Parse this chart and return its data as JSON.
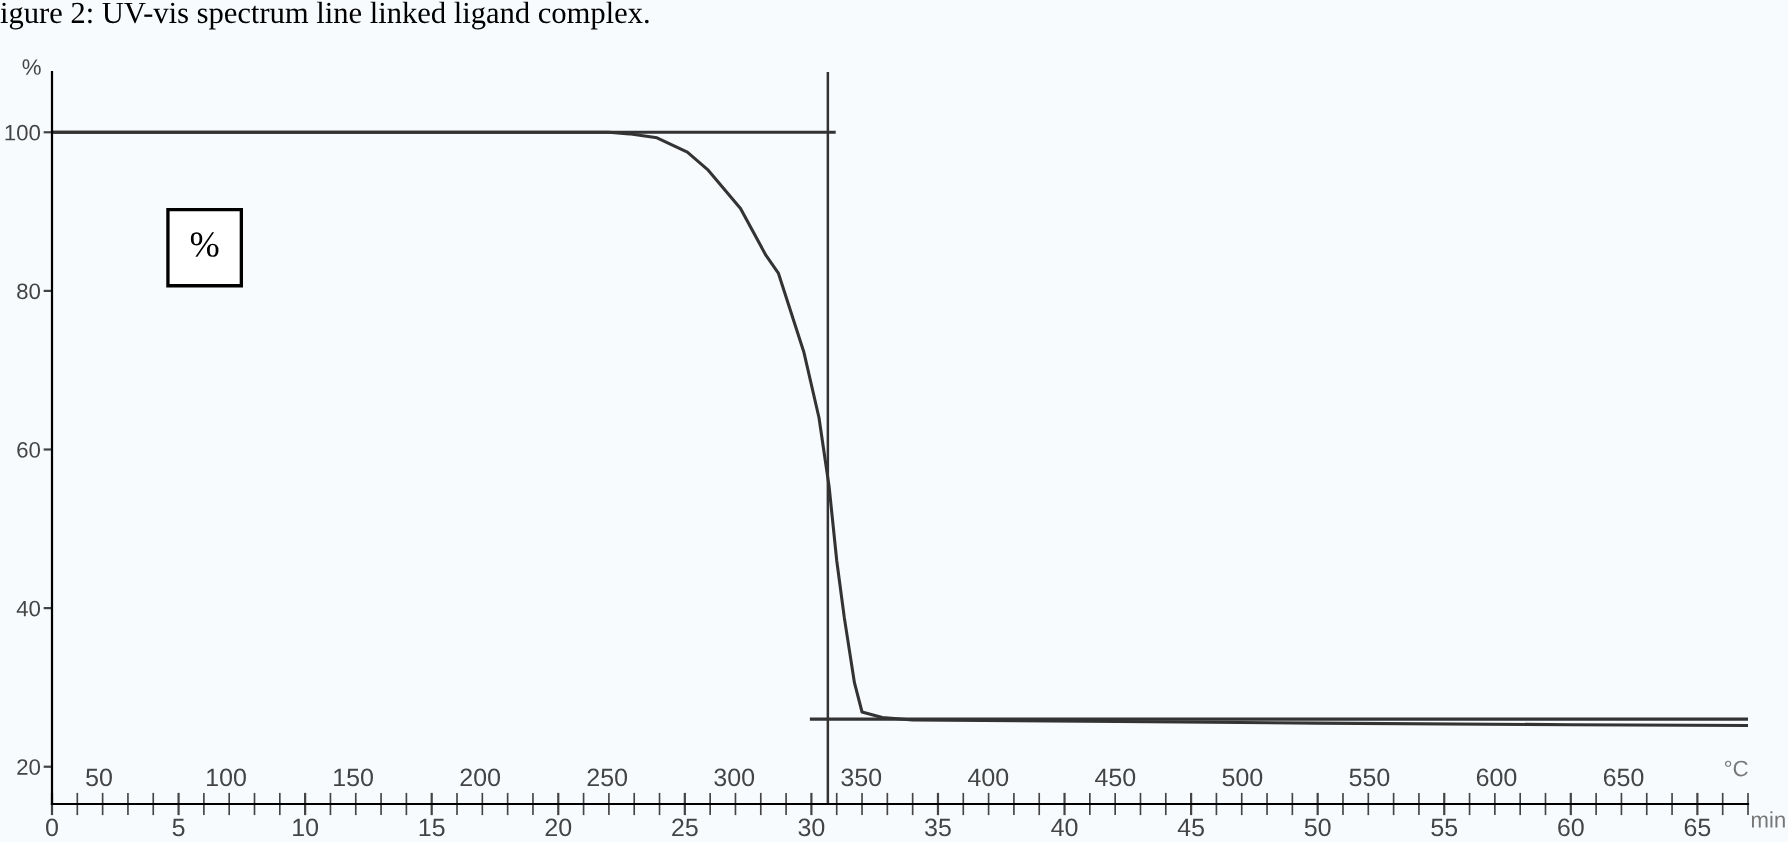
{
  "chart_data": {
    "type": "line",
    "title": "igure 2: UV-vis spectrum line linked ligand complex.",
    "ylabel": "%",
    "xlabel": "min",
    "x2label": "°C",
    "annotations": [
      "%"
    ],
    "xlim": [
      0,
      67
    ],
    "ylim": [
      15.3,
      107.6
    ],
    "xticks": [
      0,
      5,
      10,
      15,
      20,
      25,
      30,
      35,
      40,
      45,
      50,
      55,
      60,
      65
    ],
    "yticks": [
      20,
      40,
      60,
      80,
      100
    ],
    "x2lim": [
      31.5,
      699
    ],
    "x2ticks": [
      50,
      100,
      150,
      200,
      250,
      300,
      350,
      400,
      450,
      500,
      550,
      600,
      650
    ],
    "grid": false,
    "legend": false,
    "marker": "none",
    "line_style": "solid",
    "series": [
      {
        "color": "#333333",
        "x": [
          0,
          22.0,
          22.8,
          23.9,
          25.1,
          25.9,
          27.2,
          28.2,
          28.7,
          29.7,
          30.3,
          30.7,
          31.0,
          31.3,
          31.7,
          32.0,
          32.8,
          34.0,
          42.1,
          50,
          60,
          67
        ],
        "values": [
          100,
          100,
          99.8,
          99.3,
          97.5,
          95.3,
          90.4,
          84.5,
          82.2,
          72.3,
          64.0,
          55.3,
          46.0,
          38.8,
          30.6,
          26.9,
          26.2,
          25.9,
          25.7,
          25.5,
          25.3,
          25.2
        ]
      },
      {
        "color": "#333333",
        "x": [
          0,
          30.9
        ],
        "values": [
          100,
          100
        ]
      },
      {
        "color": "#333333",
        "x": [
          30.0,
          67
        ],
        "values": [
          26.0,
          26.0
        ]
      }
    ],
    "ref_lines": [
      {
        "axis": "x",
        "value": 30.65,
        "color": "#333333"
      }
    ]
  }
}
